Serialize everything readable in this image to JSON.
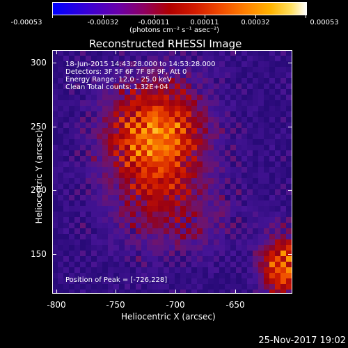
{
  "colorbar": {
    "labels": [
      "-0.00053",
      "-0.00032",
      "-0.00011",
      "0.00011",
      "0.00032",
      "0.00053"
    ],
    "units": "(photons cm⁻² s⁻¹ asec⁻²)"
  },
  "title": "Reconstructed RHESSI Image",
  "axes": {
    "x_title": "Heliocentric X (arcsec)",
    "y_title": "Heliocentric Y (arcsec)",
    "x_ticks": [
      "-800",
      "-750",
      "-700",
      "-650"
    ],
    "y_ticks": [
      "300",
      "250",
      "200",
      "150"
    ]
  },
  "annotations": {
    "line1": "18-Jun-2015 14:43:28.000 to 14:53:28.000",
    "line2": "Detectors: 3F 5F 6F 7F 8F 9F, Att 0",
    "line3": "Energy Range: 12.0 - 25.0 keV",
    "line4": "Clean    Total counts: 1.32E+04",
    "peak": "Position of Peak = [-726,228]"
  },
  "timestamp": "25-Nov-2017 19:02",
  "colors": {
    "background": "#000000",
    "low": "#3a10a0",
    "mid": "#b00000",
    "high": "#ffffff"
  }
}
